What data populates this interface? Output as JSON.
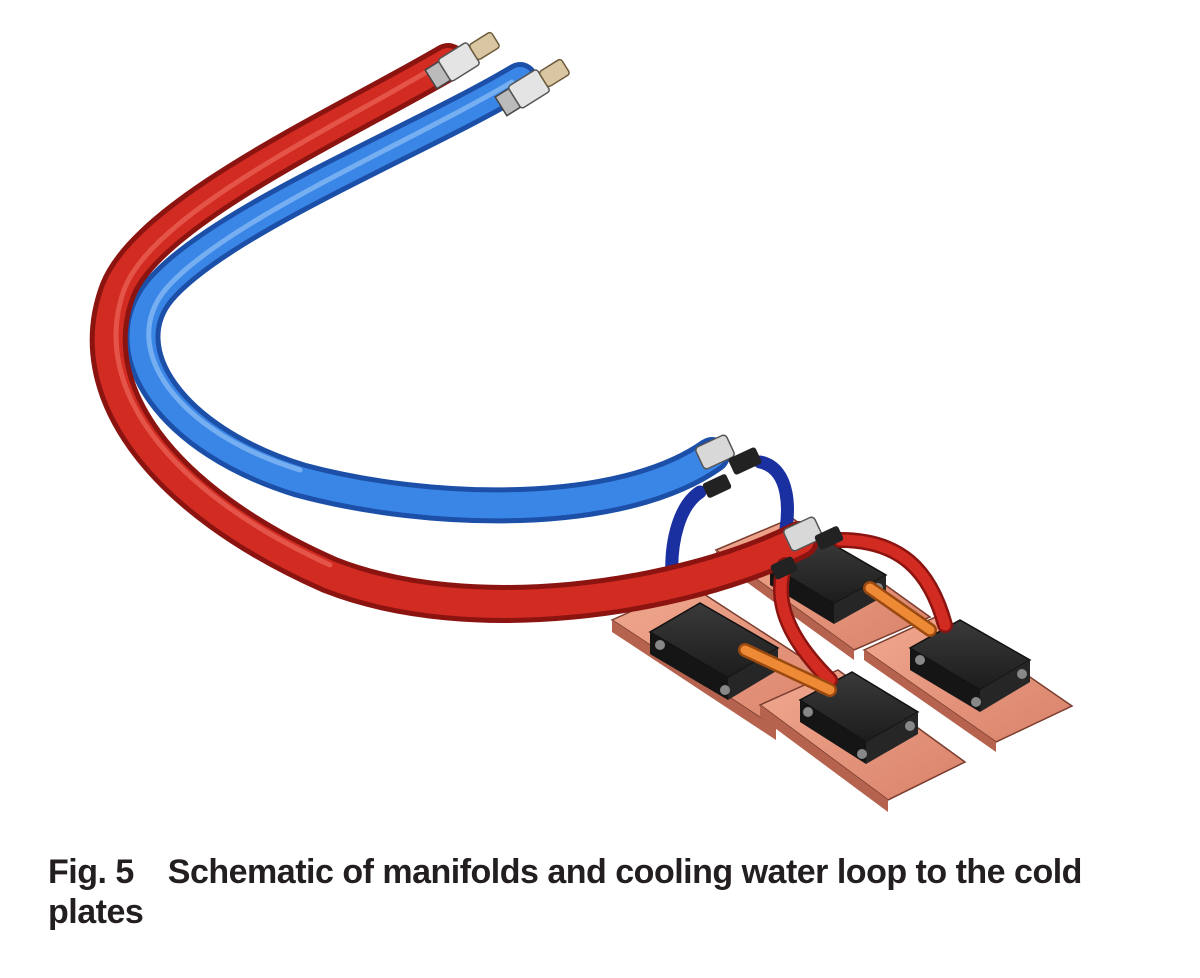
{
  "caption": {
    "label": "Fig. 5",
    "text": "Schematic of manifolds and cooling water loop to the cold plates"
  },
  "colors": {
    "hot_hose": "#c8261f",
    "cold_hose": "#2f6fd0",
    "cold_plate": "#e3917a",
    "block": "#2b2b2b",
    "jumper": "#e8862e"
  }
}
